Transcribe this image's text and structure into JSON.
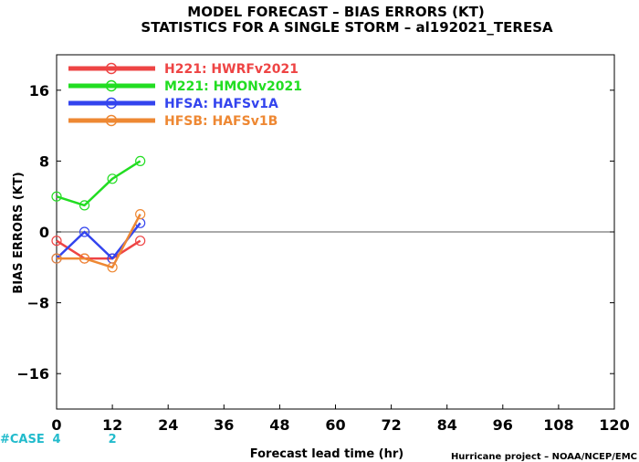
{
  "chart_data": {
    "type": "line",
    "title": "MODEL FORECAST – BIAS ERRORS (KT)",
    "subtitle": "STATISTICS FOR A SINGLE STORM – al192021_TERESA",
    "xlabel": "Forecast lead time (hr)",
    "ylabel": "BIAS ERRORS (KT)",
    "xlim": [
      0,
      120
    ],
    "ylim": [
      -20,
      20
    ],
    "x_ticks": [
      0,
      12,
      24,
      36,
      48,
      60,
      72,
      84,
      96,
      108,
      120
    ],
    "y_ticks": [
      -16,
      -8,
      0,
      8,
      16
    ],
    "y_tick_labels": [
      "−16",
      "−8",
      "0",
      "8",
      "16"
    ],
    "zero_line": true,
    "legend_position": "top-left",
    "series": [
      {
        "name": "H221: HWRFv2021",
        "color": "#ee4444",
        "x": [
          0,
          6,
          12,
          18
        ],
        "y": [
          -1,
          -3,
          -3,
          -1
        ]
      },
      {
        "name": "M221: HMONv2021",
        "color": "#22dd22",
        "x": [
          0,
          6,
          12,
          18
        ],
        "y": [
          4,
          3,
          6,
          8
        ]
      },
      {
        "name": "HFSA: HAFSv1A",
        "color": "#3344ee",
        "x": [
          0,
          6,
          12,
          18
        ],
        "y": [
          -3,
          0,
          -3,
          1
        ]
      },
      {
        "name": "HFSB: HAFSv1B",
        "color": "#ee8833",
        "x": [
          0,
          6,
          12,
          18
        ],
        "y": [
          -3,
          -3,
          -4,
          2
        ]
      }
    ],
    "case_label": "#CASE",
    "cases": [
      {
        "x": 0,
        "count": "4"
      },
      {
        "x": 12,
        "count": "2"
      }
    ]
  },
  "credit": "Hurricane project – NOAA/NCEP/EMC"
}
